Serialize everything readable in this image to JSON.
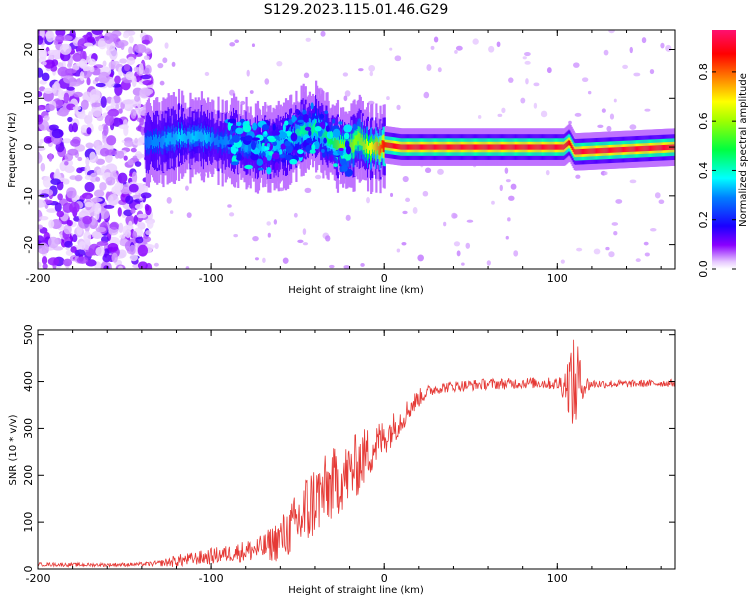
{
  "title": "S129.2023.115.01.46.G29",
  "chart_data": [
    {
      "type": "heatmap",
      "xlabel": "Height of straight line (km)",
      "ylabel": "Frequency (Hz)",
      "xlim": [
        -200,
        168
      ],
      "ylim": [
        -25,
        24
      ],
      "x_ticks": [
        "-200",
        "-100",
        "0",
        "100"
      ],
      "y_ticks": [
        "20",
        "10",
        "0",
        "-10",
        "-20"
      ],
      "grid": false,
      "colorscale": "rainbow (white-violet-blue-cyan-green-yellow-orange-red-magenta)",
      "colorbar": {
        "label": "Normalized spectral amplitude",
        "range": [
          0,
          0.97
        ],
        "ticks": [
          "0.0",
          "0.2",
          "0.4",
          "0.6",
          "0.8"
        ]
      },
      "ridge": {
        "description_points_x": [
          -135,
          -120,
          -105,
          -95,
          -85,
          -78,
          -70,
          -62,
          -55,
          -48,
          -40,
          -35,
          -30,
          -25,
          -20,
          -15,
          -10,
          -5,
          0,
          10,
          40,
          80,
          104,
          107,
          110,
          168
        ],
        "frequency_hz": [
          1,
          2,
          2,
          1,
          1,
          0,
          0,
          0,
          1,
          3,
          4,
          3,
          1,
          0,
          -0.5,
          2,
          0,
          -0.5,
          0.5,
          0,
          0,
          0,
          0,
          1,
          -1,
          0
        ],
        "peak_amplitude": [
          0.3,
          0.35,
          0.35,
          0.3,
          0.35,
          0.3,
          0.35,
          0.35,
          0.4,
          0.45,
          0.45,
          0.45,
          0.5,
          0.6,
          0.6,
          0.6,
          0.65,
          0.75,
          0.9,
          0.95,
          0.95,
          0.95,
          0.95,
          0.9,
          0.95,
          0.95
        ]
      },
      "noise_region_x": [
        -200,
        -145
      ]
    },
    {
      "type": "line",
      "xlabel": "Height of straight line (km)",
      "ylabel": "SNR (10 * v/v)",
      "xlim": [
        -200,
        168
      ],
      "ylim": [
        0,
        510
      ],
      "x_ticks": [
        "-200",
        "-100",
        "0",
        "100"
      ],
      "y_ticks": [
        "500",
        "400",
        "300",
        "200",
        "100",
        "0"
      ],
      "grid": false,
      "color": "#e53935",
      "x": [
        -200,
        -180,
        -160,
        -140,
        -130,
        -120,
        -110,
        -100,
        -90,
        -80,
        -70,
        -62,
        -55,
        -50,
        -45,
        -40,
        -35,
        -30,
        -25,
        -20,
        -15,
        -10,
        -5,
        0,
        5,
        10,
        15,
        20,
        25,
        30,
        40,
        50,
        60,
        70,
        80,
        90,
        100,
        105,
        108,
        110,
        112,
        114,
        120,
        140,
        168
      ],
      "mean": [
        10,
        9,
        9,
        10,
        12,
        17,
        22,
        27,
        33,
        38,
        45,
        60,
        80,
        100,
        120,
        150,
        160,
        180,
        190,
        205,
        225,
        245,
        265,
        280,
        300,
        320,
        345,
        365,
        378,
        385,
        390,
        392,
        395,
        395,
        397,
        397,
        395,
        395,
        400,
        380,
        410,
        390,
        395,
        395,
        397
      ],
      "jitter": [
        4,
        4,
        4,
        4,
        6,
        14,
        14,
        18,
        18,
        24,
        28,
        45,
        55,
        70,
        90,
        80,
        80,
        80,
        70,
        70,
        70,
        60,
        50,
        40,
        35,
        30,
        25,
        20,
        14,
        12,
        12,
        12,
        12,
        12,
        12,
        12,
        14,
        40,
        90,
        110,
        90,
        30,
        10,
        8,
        8
      ]
    }
  ]
}
